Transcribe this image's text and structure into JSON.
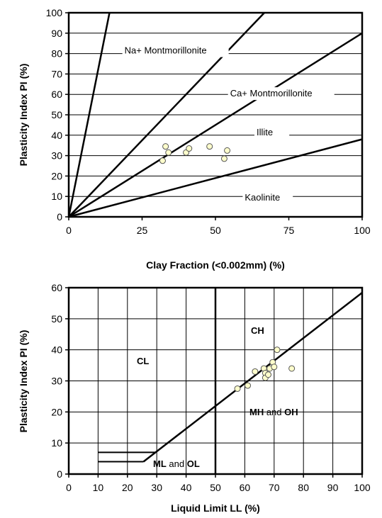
{
  "chart_data": [
    {
      "type": "scatter",
      "title": "",
      "xlabel": "Clay Fraction (<0.002mm) (%)",
      "ylabel": "Plasticity Index PI (%)",
      "xlim": [
        0,
        100
      ],
      "ylim": [
        0,
        100
      ],
      "x_ticks": [
        "0",
        "25",
        "50",
        "75",
        "100"
      ],
      "y_ticks": [
        "0",
        "10",
        "20",
        "30",
        "40",
        "50",
        "60",
        "70",
        "80",
        "90",
        "100"
      ],
      "grid": "horizontal",
      "reference_lines": [
        {
          "label": "Na+  Montmorillonite",
          "slope": 7.2
        },
        {
          "label": "Ca+  Montmorillonite",
          "slope": 1.5
        },
        {
          "label": "Illite",
          "slope": 0.9
        },
        {
          "label": "Kaolinite",
          "slope": 0.38
        }
      ],
      "points": [
        {
          "x": 32,
          "y": 27.5
        },
        {
          "x": 33,
          "y": 34.5
        },
        {
          "x": 34,
          "y": 31.5
        },
        {
          "x": 40,
          "y": 31.5
        },
        {
          "x": 41,
          "y": 33.5
        },
        {
          "x": 48,
          "y": 34.5
        },
        {
          "x": 53,
          "y": 28.5
        },
        {
          "x": 54,
          "y": 32.5
        }
      ],
      "marker_fill": "#ffffcc"
    },
    {
      "type": "scatter",
      "title": "",
      "xlabel": "Liquid Limit  LL (%)",
      "ylabel": "Plasticity Index PI (%)",
      "xlim": [
        0,
        100
      ],
      "ylim": [
        0,
        60
      ],
      "x_ticks": [
        "0",
        "10",
        "20",
        "30",
        "40",
        "50",
        "60",
        "70",
        "80",
        "90",
        "100"
      ],
      "y_ticks": [
        "0",
        "10",
        "20",
        "30",
        "40",
        "50",
        "60"
      ],
      "grid": "both",
      "regions": {
        "cl": "CL",
        "ch": "CH",
        "mh_a": "MH",
        "mh_and": " and ",
        "mh_b": "OH",
        "ml_a": "ML",
        "ml_and": " and ",
        "ml_b": "OL"
      },
      "a_line": "PI = 0.73 (LL - 20)",
      "b_line_ll": 50,
      "points": [
        {
          "x": 57.5,
          "y": 27.5
        },
        {
          "x": 61,
          "y": 28.5
        },
        {
          "x": 63.5,
          "y": 33
        },
        {
          "x": 66.5,
          "y": 34
        },
        {
          "x": 67,
          "y": 32.5
        },
        {
          "x": 67,
          "y": 31
        },
        {
          "x": 68,
          "y": 32
        },
        {
          "x": 68.5,
          "y": 34
        },
        {
          "x": 69.5,
          "y": 36
        },
        {
          "x": 70,
          "y": 34.5
        },
        {
          "x": 71,
          "y": 40
        },
        {
          "x": 76,
          "y": 34
        }
      ],
      "marker_fill": "#ffffcc"
    }
  ]
}
